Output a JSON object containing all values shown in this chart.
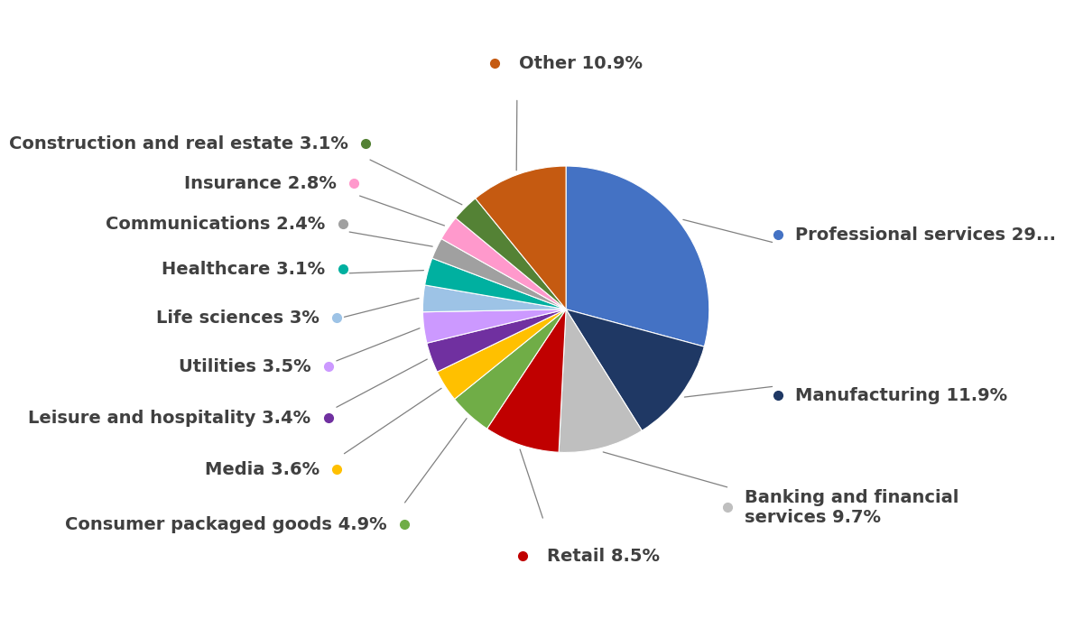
{
  "display_labels": [
    "Professional services 29...",
    "Manufacturing 11.9%",
    "Banking and financial\nservices 9.7%",
    "Retail 8.5%",
    "Consumer packaged goods 4.9%",
    "Media 3.6%",
    "Leisure and hospitality 3.4%",
    "Utilities 3.5%",
    "Life sciences 3%",
    "Healthcare 3.1%",
    "Communications 2.4%",
    "Insurance 2.8%",
    "Construction and real estate 3.1%",
    "Other 10.9%"
  ],
  "values": [
    29.2,
    11.9,
    9.7,
    8.5,
    4.9,
    3.6,
    3.4,
    3.5,
    3.0,
    3.1,
    2.4,
    2.8,
    3.1,
    10.9
  ],
  "colors": [
    "#4472C4",
    "#1F3864",
    "#BFBFBF",
    "#C00000",
    "#70AD47",
    "#FFC000",
    "#7030A0",
    "#CC99FF",
    "#9DC3E6",
    "#00B0A0",
    "#A0A0A0",
    "#FF99CC",
    "#548235",
    "#C55A11"
  ],
  "background_color": "#FFFFFF",
  "text_color": "#404040",
  "font_size": 14,
  "dot_size": 7
}
